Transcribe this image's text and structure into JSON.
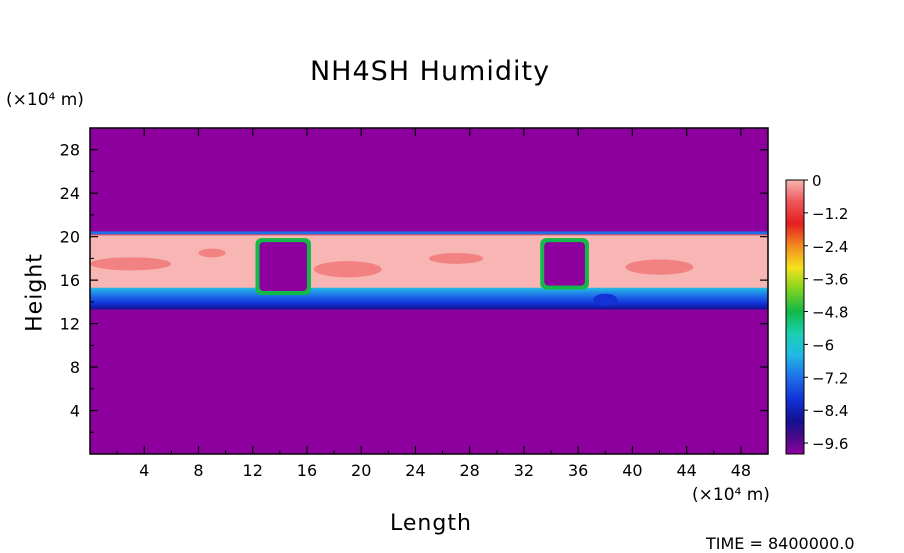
{
  "chart_data": {
    "type": "heatmap",
    "title": "NH4SH Humidity",
    "xlabel": "Length",
    "ylabel": "Height",
    "x_unit": "(×10⁴ m)",
    "y_unit": "(×10⁴ m)",
    "xlim": [
      0,
      50
    ],
    "ylim": [
      0,
      30
    ],
    "x_ticks": [
      4,
      8,
      12,
      16,
      20,
      24,
      28,
      32,
      36,
      40,
      44,
      48
    ],
    "y_ticks": [
      4,
      8,
      12,
      16,
      20,
      24,
      28
    ],
    "colorbar": {
      "min": -10,
      "max": 0,
      "labels": [
        "0",
        "−1.2",
        "−2.4",
        "−3.6",
        "−4.8",
        "−6",
        "−7.2",
        "−8.4",
        "−9.6"
      ],
      "label_values": [
        0,
        -1.2,
        -2.4,
        -3.6,
        -4.8,
        -6,
        -7.2,
        -8.4,
        -9.6
      ]
    },
    "background_value": -10,
    "layer": {
      "top": 20.3,
      "bottom_approx": 13.3
    },
    "gaps": [
      {
        "x_start": 12.5,
        "x_end": 16.0,
        "y_bottom": 15.0,
        "y_top": 19.5
      },
      {
        "x_start": 33.5,
        "x_end": 36.5,
        "y_bottom": 15.5,
        "y_top": 19.5
      }
    ],
    "footer_text": "TIME = 8400000.0"
  },
  "colors": {
    "background_field": "#8e009e",
    "saturated": "#f7b6b3"
  }
}
